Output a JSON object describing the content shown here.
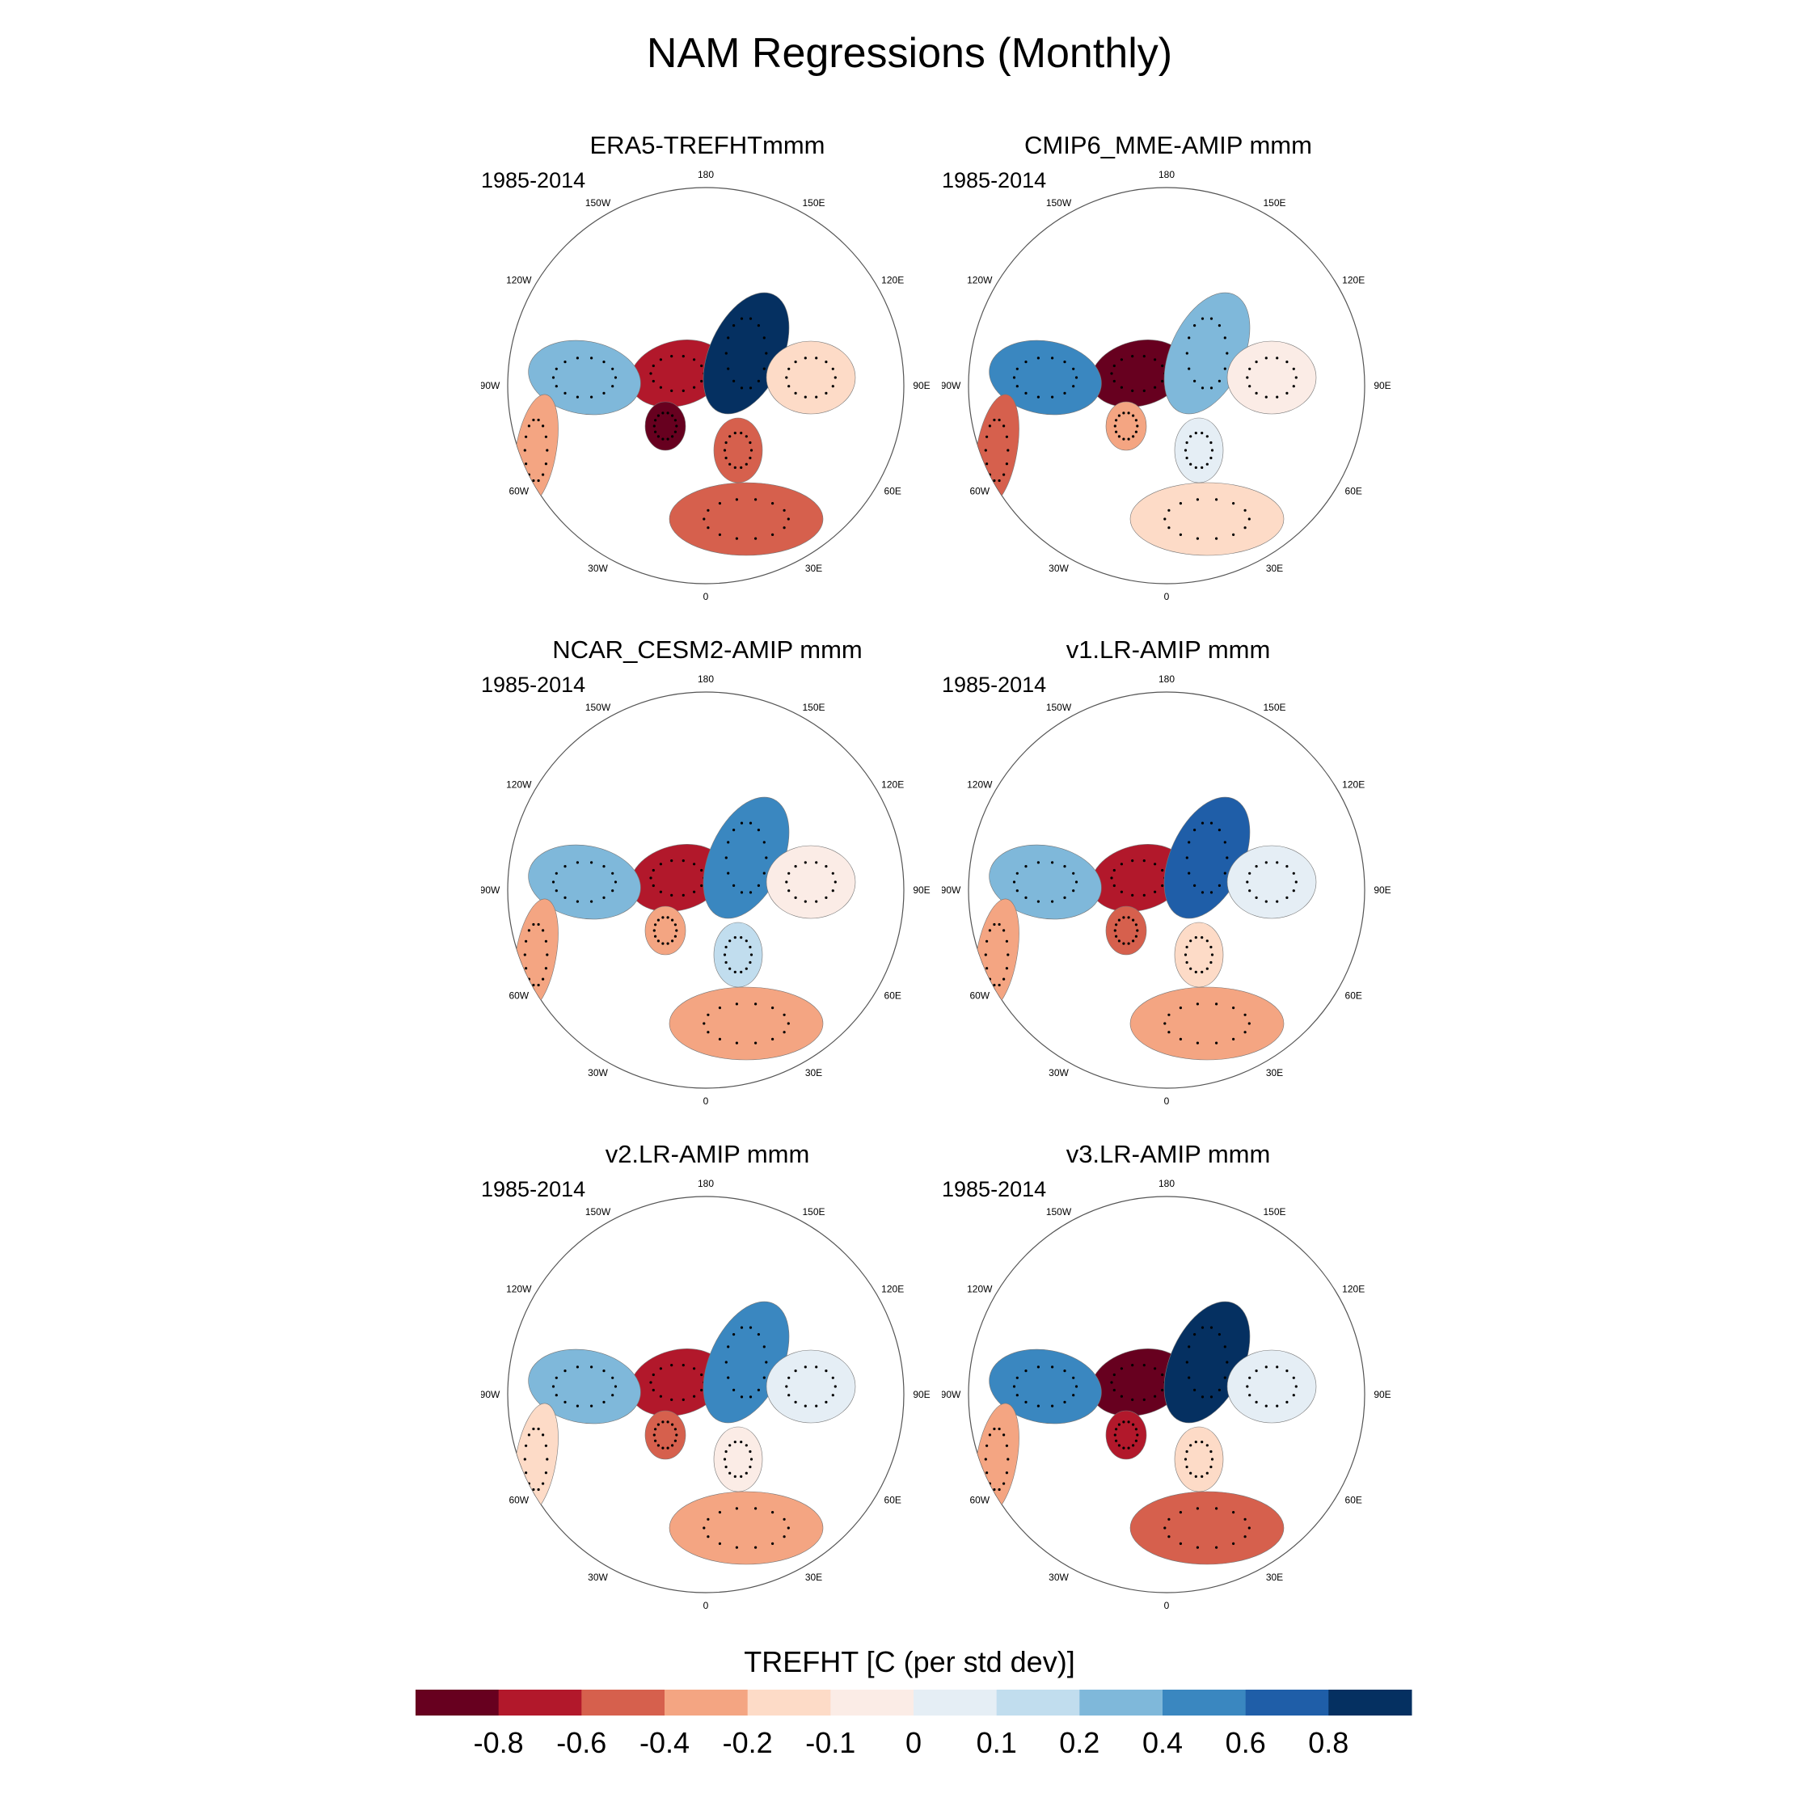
{
  "title": "NAM Regressions (Monthly)",
  "panels": [
    {
      "title": "ERA5-TREFHTmmm",
      "period": "1985-2014",
      "variant": 0
    },
    {
      "title": "CMIP6_MME-AMIP  mmm",
      "period": "1985-2014",
      "variant": 1
    },
    {
      "title": "NCAR_CESM2-AMIP  mmm",
      "period": "1985-2014",
      "variant": 2
    },
    {
      "title": "v1.LR-AMIP  mmm",
      "period": "1985-2014",
      "variant": 3
    },
    {
      "title": "v2.LR-AMIP  mmm",
      "period": "1985-2014",
      "variant": 4
    },
    {
      "title": "v3.LR-AMIP  mmm",
      "period": "1985-2014",
      "variant": 5
    }
  ],
  "longitude_labels": [
    "180",
    "150E",
    "120E",
    "90E",
    "60E",
    "30E",
    "0",
    "30W",
    "60W",
    "90W",
    "120W",
    "150W"
  ],
  "colorbar": {
    "title": "TREFHT [C (per std dev)]",
    "tick_labels": [
      "-0.8",
      "-0.6",
      "-0.4",
      "-0.2",
      "-0.1",
      "0",
      "0.1",
      "0.2",
      "0.4",
      "0.6",
      "0.8"
    ],
    "colors": [
      "#67001f",
      "#b2182b",
      "#d6604d",
      "#f4a582",
      "#fddbc7",
      "#fbece6",
      "#e5eef5",
      "#c1ddee",
      "#7fb8da",
      "#3a87c0",
      "#1f5ea8",
      "#053061"
    ]
  }
}
